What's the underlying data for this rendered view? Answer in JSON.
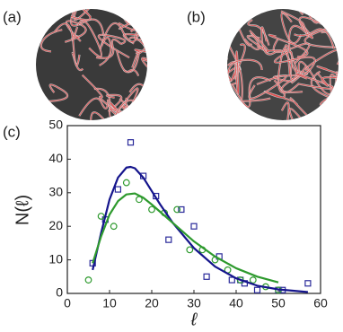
{
  "panel_labels": [
    "(a)",
    "(b)",
    "(c)"
  ],
  "chart_data": {
    "type": "scatter",
    "xlabel": "ℓ",
    "ylabel": "N(ℓ)",
    "xlim": [
      0,
      60
    ],
    "xticks": [
      0,
      10,
      20,
      30,
      40,
      50,
      60
    ],
    "ylim": [
      0,
      50
    ],
    "yticks": [
      0,
      10,
      20,
      30,
      40,
      50
    ],
    "series": [
      {
        "color": "#2a2a9a",
        "marker": "square",
        "x": [
          6,
          9,
          12,
          15,
          18,
          21,
          24,
          27,
          30,
          33,
          36,
          39,
          41,
          42,
          45,
          50,
          51,
          57
        ],
        "values": [
          9,
          22,
          31,
          45,
          35,
          29,
          16,
          25,
          20,
          5,
          11,
          4,
          4,
          3,
          1,
          1,
          1,
          3
        ]
      },
      {
        "color": "#2e9a2e",
        "marker": "circle",
        "x": [
          5,
          8,
          11,
          14,
          17,
          20,
          23,
          26,
          29,
          32,
          35,
          38,
          41,
          44,
          47,
          50
        ],
        "values": [
          4,
          23,
          20,
          33,
          28,
          25,
          24,
          25,
          13,
          13,
          10,
          7,
          4,
          4,
          2,
          1
        ]
      },
      {
        "color": "#14148c",
        "marker": "none",
        "x": [
          6,
          8,
          10,
          12,
          14,
          15,
          16,
          18,
          20,
          22,
          25,
          30,
          35,
          40,
          45,
          50,
          57
        ],
        "values": [
          7,
          18,
          28,
          34.5,
          37.5,
          37.7,
          37.3,
          34.5,
          30.5,
          26.5,
          21,
          13.5,
          8,
          4.5,
          2.3,
          1.2,
          0.4
        ]
      },
      {
        "color": "#2e9a2e",
        "marker": "none",
        "x": [
          6,
          8,
          10,
          12,
          14,
          16,
          18,
          20,
          22,
          25,
          30,
          35,
          40,
          45,
          50
        ],
        "values": [
          9,
          17,
          23.5,
          27.5,
          29.5,
          29.8,
          28.5,
          26.5,
          24.3,
          21,
          15.5,
          11,
          7.5,
          5,
          3.3
        ]
      }
    ]
  }
}
